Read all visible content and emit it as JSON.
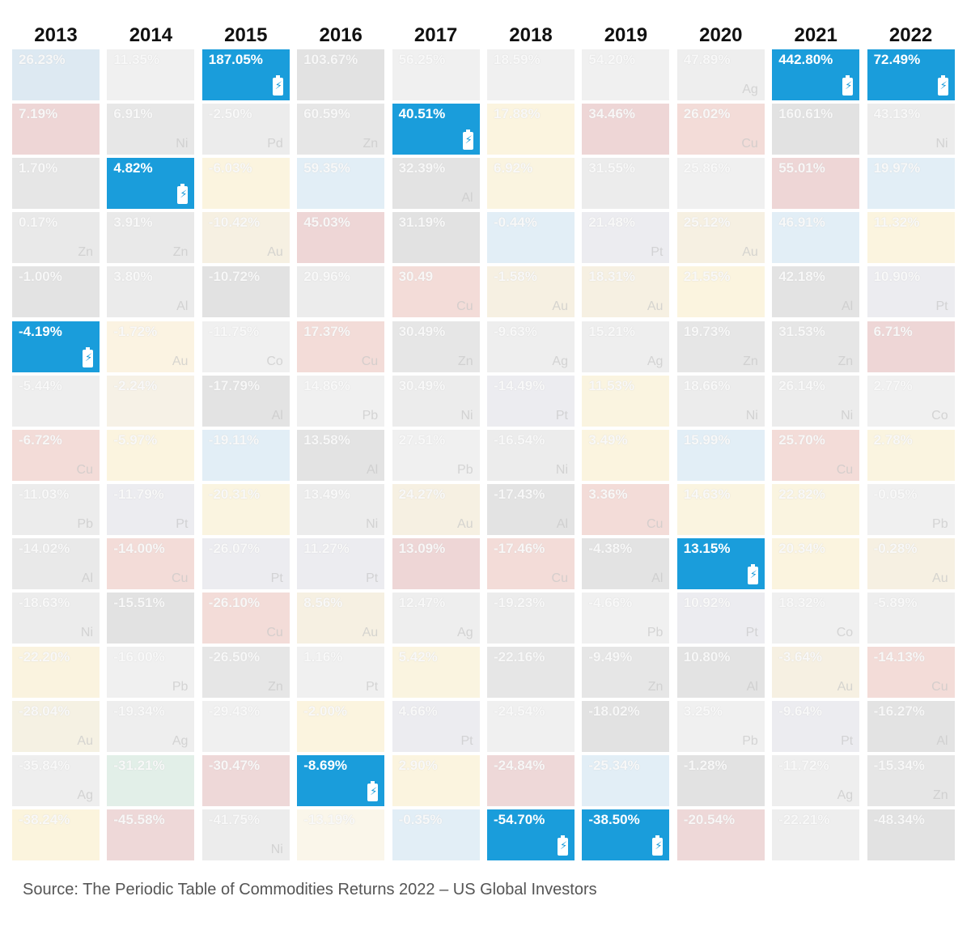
{
  "chart_data": {
    "type": "table",
    "title": "",
    "years": [
      "2013",
      "2014",
      "2015",
      "2016",
      "2017",
      "2018",
      "2019",
      "2020",
      "2021",
      "2022"
    ],
    "highlight_color": "#1a9ddb",
    "highlight_icon": "battery-icon",
    "columns": [
      {
        "year": "2013",
        "highlight_index": 5,
        "cells": [
          {
            "value": "26.23%",
            "symbol": "",
            "tint": "#dde9f2"
          },
          {
            "value": "7.19%",
            "symbol": "",
            "tint": "#eed6d6"
          },
          {
            "value": "1.70%",
            "symbol": "",
            "tint": "#e6e6e6"
          },
          {
            "value": "0.17%",
            "symbol": "Zn",
            "tint": "#e9e9e9"
          },
          {
            "value": "-1.00%",
            "symbol": "",
            "tint": "#e3e3e3"
          },
          {
            "value": "-4.19%",
            "symbol": "",
            "tint": "#1a9ddb"
          },
          {
            "value": "-5.44%",
            "symbol": "",
            "tint": "#eeeeee"
          },
          {
            "value": "-6.72%",
            "symbol": "Cu",
            "tint": "#f3dcd8"
          },
          {
            "value": "-11.03%",
            "symbol": "Pb",
            "tint": "#ececec"
          },
          {
            "value": "-14.02%",
            "symbol": "Al",
            "tint": "#e9e9e9"
          },
          {
            "value": "-18.63%",
            "symbol": "Ni",
            "tint": "#ececec"
          },
          {
            "value": "-22.20%",
            "symbol": "",
            "tint": "#faf3df"
          },
          {
            "value": "-28.04%",
            "symbol": "Au",
            "tint": "#f5f1e3"
          },
          {
            "value": "-35.84%",
            "symbol": "Ag",
            "tint": "#eeeeee"
          },
          {
            "value": "-38.24%",
            "symbol": "",
            "tint": "#fbf4dd"
          }
        ]
      },
      {
        "year": "2014",
        "highlight_index": 2,
        "cells": [
          {
            "value": "11.35%",
            "symbol": "",
            "tint": "#f0f0f0"
          },
          {
            "value": "6.91%",
            "symbol": "Ni",
            "tint": "#e7e7e7"
          },
          {
            "value": "4.82%",
            "symbol": "",
            "tint": "#1a9ddb"
          },
          {
            "value": "3.91%",
            "symbol": "Zn",
            "tint": "#e9e9e9"
          },
          {
            "value": "3.80%",
            "symbol": "Al",
            "tint": "#ebebeb"
          },
          {
            "value": "-1.72%",
            "symbol": "Au",
            "tint": "#fbf3e2"
          },
          {
            "value": "-2.24%",
            "symbol": "",
            "tint": "#f6f1e6"
          },
          {
            "value": "-5.97%",
            "symbol": "",
            "tint": "#fbf4df"
          },
          {
            "value": "-11.79%",
            "symbol": "Pt",
            "tint": "#ececf0"
          },
          {
            "value": "-14.00%",
            "symbol": "Cu",
            "tint": "#f3dcd8"
          },
          {
            "value": "-15.51%",
            "symbol": "",
            "tint": "#e2e2e2"
          },
          {
            "value": "-16.00%",
            "symbol": "Pb",
            "tint": "#f0f0f0"
          },
          {
            "value": "-19.34%",
            "symbol": "Ag",
            "tint": "#eeeeee"
          },
          {
            "value": "-31.21%",
            "symbol": "",
            "tint": "#e2efe8"
          },
          {
            "value": "-45.58%",
            "symbol": "",
            "tint": "#eed8d8"
          }
        ]
      },
      {
        "year": "2015",
        "highlight_index": 0,
        "cells": [
          {
            "value": "187.05%",
            "symbol": "",
            "tint": "#1a9ddb"
          },
          {
            "value": "-2.50%",
            "symbol": "Pd",
            "tint": "#ececec"
          },
          {
            "value": "-6.03%",
            "symbol": "",
            "tint": "#fbf4df"
          },
          {
            "value": "-10.42%",
            "symbol": "Au",
            "tint": "#f6f0e2"
          },
          {
            "value": "-10.72%",
            "symbol": "",
            "tint": "#e2e2e2"
          },
          {
            "value": "-11.75%",
            "symbol": "Co",
            "tint": "#f0f0f0"
          },
          {
            "value": "-17.79%",
            "symbol": "Al",
            "tint": "#e3e3e3"
          },
          {
            "value": "-19.11%",
            "symbol": "",
            "tint": "#e2eef6"
          },
          {
            "value": "-20.31%",
            "symbol": "",
            "tint": "#faf4e0"
          },
          {
            "value": "-26.07%",
            "symbol": "Pt",
            "tint": "#ececf0"
          },
          {
            "value": "-26.10%",
            "symbol": "Cu",
            "tint": "#f3dcd8"
          },
          {
            "value": "-26.50%",
            "symbol": "Zn",
            "tint": "#e6e6e6"
          },
          {
            "value": "-29.43%",
            "symbol": "",
            "tint": "#f0f0f0"
          },
          {
            "value": "-30.47%",
            "symbol": "",
            "tint": "#eed8d8"
          },
          {
            "value": "-41.75%",
            "symbol": "Ni",
            "tint": "#ececec"
          }
        ]
      },
      {
        "year": "2016",
        "highlight_index": 13,
        "cells": [
          {
            "value": "103.67%",
            "symbol": "",
            "tint": "#e2e2e2"
          },
          {
            "value": "60.59%",
            "symbol": "Zn",
            "tint": "#e6e6e6"
          },
          {
            "value": "59.35%",
            "symbol": "",
            "tint": "#e2eef6"
          },
          {
            "value": "45.03%",
            "symbol": "",
            "tint": "#eed6d6"
          },
          {
            "value": "20.96%",
            "symbol": "",
            "tint": "#ececec"
          },
          {
            "value": "17.37%",
            "symbol": "Cu",
            "tint": "#f3dcd8"
          },
          {
            "value": "14.86%",
            "symbol": "Pb",
            "tint": "#f0f0f0"
          },
          {
            "value": "13.58%",
            "symbol": "Al",
            "tint": "#e3e3e3"
          },
          {
            "value": "13.49%",
            "symbol": "Ni",
            "tint": "#ececec"
          },
          {
            "value": "11.27%",
            "symbol": "Pt",
            "tint": "#ececf0"
          },
          {
            "value": "8.56%",
            "symbol": "Au",
            "tint": "#f6f0e2"
          },
          {
            "value": "1.16%",
            "symbol": "Pt",
            "tint": "#f0f0f0"
          },
          {
            "value": "-2.00%",
            "symbol": "",
            "tint": "#fbf4df"
          },
          {
            "value": "-8.69%",
            "symbol": "",
            "tint": "#1a9ddb"
          },
          {
            "value": "-13.19%",
            "symbol": "",
            "tint": "#faf6ea"
          }
        ]
      },
      {
        "year": "2017",
        "highlight_index": 1,
        "cells": [
          {
            "value": "56.25%",
            "symbol": "",
            "tint": "#f0f0f0"
          },
          {
            "value": "40.51%",
            "symbol": "",
            "tint": "#1a9ddb"
          },
          {
            "value": "32.39%",
            "symbol": "Al",
            "tint": "#e3e3e3"
          },
          {
            "value": "31.19%",
            "symbol": "",
            "tint": "#e2e2e2"
          },
          {
            "value": "30.49",
            "symbol": "Cu",
            "tint": "#f3dcd8"
          },
          {
            "value": "30.49%",
            "symbol": "Zn",
            "tint": "#e6e6e6"
          },
          {
            "value": "30.49%",
            "symbol": "Ni",
            "tint": "#ececec"
          },
          {
            "value": "27.51%",
            "symbol": "Pb",
            "tint": "#f0f0f0"
          },
          {
            "value": "24.27%",
            "symbol": "Au",
            "tint": "#f6f0e2"
          },
          {
            "value": "13.09%",
            "symbol": "",
            "tint": "#eed6d6"
          },
          {
            "value": "12.47%",
            "symbol": "Ag",
            "tint": "#eeeeee"
          },
          {
            "value": "5.42%",
            "symbol": "",
            "tint": "#faf4e0"
          },
          {
            "value": "4.66%",
            "symbol": "Pt",
            "tint": "#ececf0"
          },
          {
            "value": "2.90%",
            "symbol": "",
            "tint": "#fbf4df"
          },
          {
            "value": "-0.35%",
            "symbol": "",
            "tint": "#e2eef6"
          }
        ]
      },
      {
        "year": "2018",
        "highlight_index": 14,
        "cells": [
          {
            "value": "18.59%",
            "symbol": "",
            "tint": "#f0f0f0"
          },
          {
            "value": "17.88%",
            "symbol": "",
            "tint": "#fbf4df"
          },
          {
            "value": "6.92%",
            "symbol": "",
            "tint": "#faf4e0"
          },
          {
            "value": "-0.44%",
            "symbol": "",
            "tint": "#e2eef6"
          },
          {
            "value": "-1.58%",
            "symbol": "Au",
            "tint": "#f6f0e2"
          },
          {
            "value": "-9.63%",
            "symbol": "Ag",
            "tint": "#eeeeee"
          },
          {
            "value": "-14.49%",
            "symbol": "Pt",
            "tint": "#ececf0"
          },
          {
            "value": "-16.54%",
            "symbol": "Ni",
            "tint": "#ececec"
          },
          {
            "value": "-17.43%",
            "symbol": "Al",
            "tint": "#e3e3e3"
          },
          {
            "value": "-17.46%",
            "symbol": "Cu",
            "tint": "#f3dcd8"
          },
          {
            "value": "-19.23%",
            "symbol": "",
            "tint": "#ececec"
          },
          {
            "value": "-22.16%",
            "symbol": "",
            "tint": "#e6e6e6"
          },
          {
            "value": "-24.54%",
            "symbol": "",
            "tint": "#f0f0f0"
          },
          {
            "value": "-24.84%",
            "symbol": "",
            "tint": "#eed8d8"
          },
          {
            "value": "-54.70%",
            "symbol": "",
            "tint": "#1a9ddb"
          }
        ]
      },
      {
        "year": "2019",
        "highlight_index": 14,
        "cells": [
          {
            "value": "54.20%",
            "symbol": "",
            "tint": "#f0f0f0"
          },
          {
            "value": "34.46%",
            "symbol": "",
            "tint": "#eed6d6"
          },
          {
            "value": "31.55%",
            "symbol": "",
            "tint": "#ececec"
          },
          {
            "value": "21.48%",
            "symbol": "Pt",
            "tint": "#ececf0"
          },
          {
            "value": "18.31%",
            "symbol": "Au",
            "tint": "#f6f0e2"
          },
          {
            "value": "15.21%",
            "symbol": "Ag",
            "tint": "#eeeeee"
          },
          {
            "value": "11.53%",
            "symbol": "",
            "tint": "#faf4e0"
          },
          {
            "value": "3.49%",
            "symbol": "",
            "tint": "#fbf4df"
          },
          {
            "value": "3.36%",
            "symbol": "Cu",
            "tint": "#f3dcd8"
          },
          {
            "value": "-4.38%",
            "symbol": "Al",
            "tint": "#e3e3e3"
          },
          {
            "value": "-4.66%",
            "symbol": "Pb",
            "tint": "#f0f0f0"
          },
          {
            "value": "-9.49%",
            "symbol": "Zn",
            "tint": "#e6e6e6"
          },
          {
            "value": "-18.02%",
            "symbol": "",
            "tint": "#e2e2e2"
          },
          {
            "value": "-25.34%",
            "symbol": "",
            "tint": "#e2eef6"
          },
          {
            "value": "-38.50%",
            "symbol": "",
            "tint": "#1a9ddb"
          }
        ]
      },
      {
        "year": "2020",
        "highlight_index": 9,
        "cells": [
          {
            "value": "47.89%",
            "symbol": "Ag",
            "tint": "#eeeeee"
          },
          {
            "value": "26.02%",
            "symbol": "Cu",
            "tint": "#f3dcd8"
          },
          {
            "value": "25.86%",
            "symbol": "",
            "tint": "#f0f0f0"
          },
          {
            "value": "25.12%",
            "symbol": "Au",
            "tint": "#f6f0e2"
          },
          {
            "value": "21.55%",
            "symbol": "",
            "tint": "#fbf4df"
          },
          {
            "value": "19.73%",
            "symbol": "Zn",
            "tint": "#e6e6e6"
          },
          {
            "value": "18.66%",
            "symbol": "Ni",
            "tint": "#ececec"
          },
          {
            "value": "15.99%",
            "symbol": "",
            "tint": "#e2eef6"
          },
          {
            "value": "14.63%",
            "symbol": "",
            "tint": "#faf4e0"
          },
          {
            "value": "13.15%",
            "symbol": "",
            "tint": "#1a9ddb"
          },
          {
            "value": "10.92%",
            "symbol": "Pt",
            "tint": "#ececf0"
          },
          {
            "value": "10.80%",
            "symbol": "Al",
            "tint": "#e3e3e3"
          },
          {
            "value": "3.25%",
            "symbol": "Pb",
            "tint": "#f0f0f0"
          },
          {
            "value": "-1.28%",
            "symbol": "",
            "tint": "#e2e2e2"
          },
          {
            "value": "-20.54%",
            "symbol": "",
            "tint": "#eed8d8"
          }
        ]
      },
      {
        "year": "2021",
        "highlight_index": 0,
        "cells": [
          {
            "value": "442.80%",
            "symbol": "",
            "tint": "#1a9ddb"
          },
          {
            "value": "160.61%",
            "symbol": "",
            "tint": "#e2e2e2"
          },
          {
            "value": "55.01%",
            "symbol": "",
            "tint": "#eed6d6"
          },
          {
            "value": "46.91%",
            "symbol": "",
            "tint": "#e2eef6"
          },
          {
            "value": "42.18%",
            "symbol": "Al",
            "tint": "#e3e3e3"
          },
          {
            "value": "31.53%",
            "symbol": "Zn",
            "tint": "#e6e6e6"
          },
          {
            "value": "26.14%",
            "symbol": "Ni",
            "tint": "#ececec"
          },
          {
            "value": "25.70%",
            "symbol": "Cu",
            "tint": "#f3dcd8"
          },
          {
            "value": "22.82%",
            "symbol": "",
            "tint": "#faf4e0"
          },
          {
            "value": "20.34%",
            "symbol": "",
            "tint": "#fbf4df"
          },
          {
            "value": "18.32%",
            "symbol": "Co",
            "tint": "#f0f0f0"
          },
          {
            "value": "-3.64%",
            "symbol": "Au",
            "tint": "#f6f0e2"
          },
          {
            "value": "-9.64%",
            "symbol": "Pt",
            "tint": "#ececf0"
          },
          {
            "value": "-11.72%",
            "symbol": "Ag",
            "tint": "#eeeeee"
          },
          {
            "value": "-22.21%",
            "symbol": "",
            "tint": "#eeeeee"
          }
        ]
      },
      {
        "year": "2022",
        "highlight_index": 0,
        "cells": [
          {
            "value": "72.49%",
            "symbol": "",
            "tint": "#1a9ddb"
          },
          {
            "value": "43.13%",
            "symbol": "Ni",
            "tint": "#ececec"
          },
          {
            "value": "19.97%",
            "symbol": "",
            "tint": "#e2eef6"
          },
          {
            "value": "11.32%",
            "symbol": "",
            "tint": "#fbf4df"
          },
          {
            "value": "10.90%",
            "symbol": "Pt",
            "tint": "#ececf0"
          },
          {
            "value": "6.71%",
            "symbol": "",
            "tint": "#eed6d6"
          },
          {
            "value": "2.77%",
            "symbol": "Co",
            "tint": "#f0f0f0"
          },
          {
            "value": "2.78%",
            "symbol": "",
            "tint": "#faf4e0"
          },
          {
            "value": "-0.05%",
            "symbol": "Pb",
            "tint": "#f0f0f0"
          },
          {
            "value": "-0.28%",
            "symbol": "Au",
            "tint": "#f6f0e2"
          },
          {
            "value": "-5.89%",
            "symbol": "",
            "tint": "#eeeeee"
          },
          {
            "value": "-14.13%",
            "symbol": "Cu",
            "tint": "#f3dcd8"
          },
          {
            "value": "-16.27%",
            "symbol": "Al",
            "tint": "#e3e3e3"
          },
          {
            "value": "-15.34%",
            "symbol": "Zn",
            "tint": "#e6e6e6"
          },
          {
            "value": "-48.34%",
            "symbol": "",
            "tint": "#e2e2e2"
          }
        ]
      }
    ]
  },
  "source": "Source: The Periodic Table of Commodities Returns 2022 – US Global Investors"
}
